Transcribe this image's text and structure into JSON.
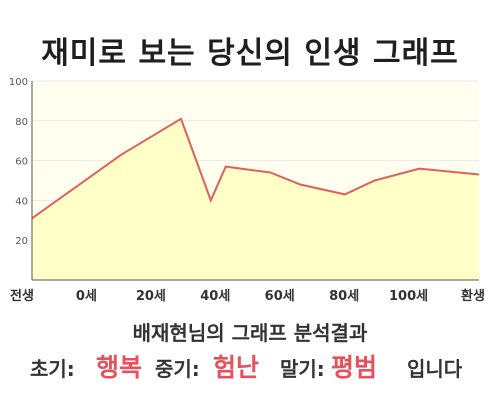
{
  "title": "재미로 보는 당신의 인생 그래프",
  "subtitle": "배재현님의 그래프 분석결과",
  "summary": {
    "early_label": "초기:",
    "early_value": "행복",
    "mid_label": "중기:",
    "mid_value": "험난",
    "late_label": "말기:",
    "late_value": "평범",
    "ending": "입니다"
  },
  "colors": {
    "line": "#e06060",
    "fill": "#ffffc8",
    "plot_bg": "#fffff0",
    "grid": "#e8e8e8",
    "axis": "#555555",
    "highlight": "#e8505b"
  },
  "chart_data": {
    "type": "area",
    "title": "",
    "xlabel": "",
    "ylabel": "",
    "ylim": [
      0,
      100
    ],
    "y_ticks": [
      "20",
      "40",
      "60",
      "80",
      "100"
    ],
    "x_tick_labels": [
      "전생",
      "0세",
      "20세",
      "40세",
      "60세",
      "80세",
      "100세",
      "환생"
    ],
    "grid": true,
    "legend": "none",
    "series": [
      {
        "x": [
          -30,
          0,
          20,
          30,
          35,
          50,
          60,
          75,
          85,
          100,
          120
        ],
        "values": [
          31,
          63,
          81,
          40,
          57,
          54,
          48,
          43,
          50,
          56,
          53
        ]
      }
    ]
  }
}
